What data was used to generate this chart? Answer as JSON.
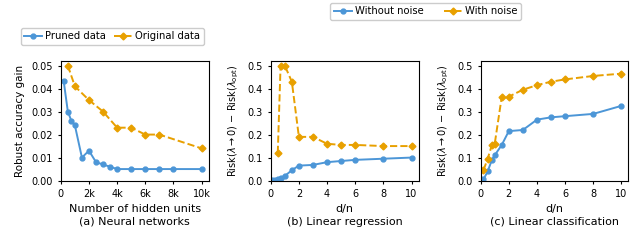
{
  "panel_a": {
    "title": "(a) Neural networks",
    "xlabel": "Number of hidden units",
    "ylabel": "Robust accuracy gain",
    "xlim": [
      0,
      10500
    ],
    "ylim": [
      0,
      0.052
    ],
    "xticks": [
      0,
      2000,
      4000,
      6000,
      8000,
      10000
    ],
    "xticklabels": [
      "0",
      "2k",
      "4k",
      "6k",
      "8k",
      "10k"
    ],
    "yticks": [
      0.0,
      0.01,
      0.02,
      0.03,
      0.04,
      0.05
    ],
    "blue_x": [
      200,
      500,
      750,
      1000,
      1500,
      2000,
      2500,
      3000,
      3500,
      4000,
      5000,
      6000,
      7000,
      8000,
      10000
    ],
    "blue_y": [
      0.0435,
      0.03,
      0.026,
      0.024,
      0.01,
      0.013,
      0.008,
      0.007,
      0.006,
      0.005,
      0.005,
      0.005,
      0.005,
      0.005,
      0.005
    ],
    "orange_x": [
      500,
      1000,
      2000,
      3000,
      4000,
      5000,
      6000,
      7000,
      10000
    ],
    "orange_y": [
      0.05,
      0.041,
      0.035,
      0.03,
      0.023,
      0.023,
      0.02,
      0.02,
      0.014
    ],
    "legend_labels": [
      "Pruned data",
      "Original data"
    ]
  },
  "panel_b": {
    "title": "(b) Linear regression",
    "xlabel": "d/n",
    "xlim": [
      0,
      10.5
    ],
    "ylim": [
      0,
      0.52
    ],
    "xticks": [
      0,
      2,
      4,
      6,
      8,
      10
    ],
    "yticks": [
      0.0,
      0.1,
      0.2,
      0.3,
      0.4,
      0.5
    ],
    "blue_x": [
      0.1,
      0.3,
      0.5,
      0.7,
      1.0,
      1.5,
      2.0,
      3.0,
      4.0,
      5.0,
      6.0,
      8.0,
      10.0
    ],
    "blue_y": [
      0.001,
      0.002,
      0.005,
      0.01,
      0.02,
      0.045,
      0.065,
      0.068,
      0.08,
      0.085,
      0.09,
      0.095,
      0.1
    ],
    "orange_x": [
      0.5,
      0.7,
      1.0,
      1.5,
      2.0,
      3.0,
      4.0,
      5.0,
      6.0,
      8.0,
      10.0
    ],
    "orange_y": [
      0.12,
      0.5,
      0.5,
      0.43,
      0.19,
      0.19,
      0.16,
      0.155,
      0.155,
      0.15,
      0.15
    ]
  },
  "panel_c": {
    "title": "(c) Linear classification",
    "xlabel": "d/n",
    "xlim": [
      0,
      10.5
    ],
    "ylim": [
      0,
      0.52
    ],
    "xticks": [
      0,
      2,
      4,
      6,
      8,
      10
    ],
    "yticks": [
      0.0,
      0.1,
      0.2,
      0.3,
      0.4,
      0.5
    ],
    "blue_x": [
      0.2,
      0.5,
      0.8,
      1.0,
      1.5,
      2.0,
      3.0,
      4.0,
      5.0,
      6.0,
      8.0,
      10.0
    ],
    "blue_y": [
      0.005,
      0.04,
      0.09,
      0.11,
      0.155,
      0.215,
      0.22,
      0.265,
      0.275,
      0.28,
      0.29,
      0.325
    ],
    "orange_x": [
      0.2,
      0.5,
      0.8,
      1.0,
      1.5,
      2.0,
      3.0,
      4.0,
      5.0,
      6.0,
      8.0,
      10.0
    ],
    "orange_y": [
      0.045,
      0.095,
      0.155,
      0.16,
      0.365,
      0.365,
      0.395,
      0.415,
      0.43,
      0.44,
      0.455,
      0.465
    ]
  },
  "shared_legend_labels": [
    "Without noise",
    "With noise"
  ],
  "ylabel_bc": "Risk(λ → 0) − Risk(λ_opt)",
  "blue_color": "#4C96D7",
  "orange_color": "#E8A000",
  "blue_marker": "o",
  "orange_marker": "D",
  "marker_size": 3.5,
  "line_width": 1.4
}
